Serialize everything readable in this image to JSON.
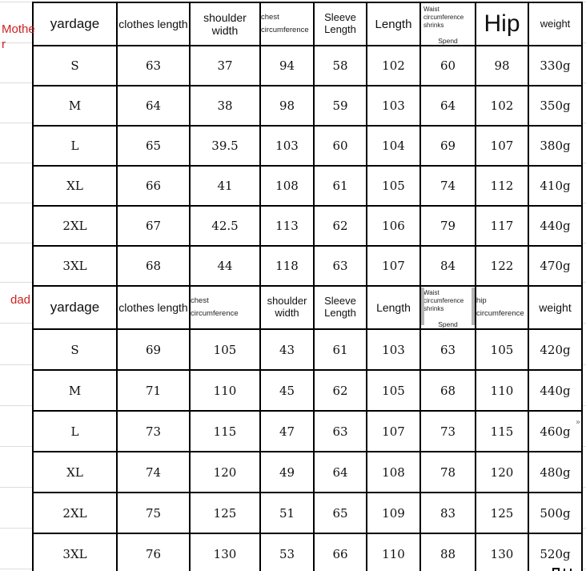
{
  "page": {
    "mother_label": "Mother",
    "dad_label": "dad",
    "accent_red": "#cc2222",
    "border_black": "#000000",
    "faint_line_gray": "#dcdcdc",
    "cursor_glyph": "»"
  },
  "tables": [
    {
      "label": "Mother",
      "headers": [
        {
          "label": "yardage"
        },
        {
          "label": "clothes length"
        },
        {
          "label": "shoulder width"
        },
        {
          "label": "chest circumference"
        },
        {
          "label": "Sleeve Length"
        },
        {
          "label": "Length"
        },
        {
          "label": "Waist circumference shrinks",
          "sub": "Spend"
        },
        {
          "label": "Hip"
        },
        {
          "label": "weight"
        }
      ],
      "rows": [
        [
          "S",
          "63",
          "37",
          "94",
          "58",
          "102",
          "60",
          "98",
          "330g"
        ],
        [
          "M",
          "64",
          "38",
          "98",
          "59",
          "103",
          "64",
          "102",
          "350g"
        ],
        [
          "L",
          "65",
          "39.5",
          "103",
          "60",
          "104",
          "69",
          "107",
          "380g"
        ],
        [
          "XL",
          "66",
          "41",
          "108",
          "61",
          "105",
          "74",
          "112",
          "410g"
        ],
        [
          "2XL",
          "67",
          "42.5",
          "113",
          "62",
          "106",
          "79",
          "117",
          "440g"
        ],
        [
          "3XL",
          "68",
          "44",
          "118",
          "63",
          "107",
          "84",
          "122",
          "470g"
        ]
      ]
    },
    {
      "label": "dad",
      "headers": [
        {
          "label": "yardage"
        },
        {
          "label": "clothes length"
        },
        {
          "label": "chest circumference"
        },
        {
          "label": "shoulder width"
        },
        {
          "label": "Sleeve Length"
        },
        {
          "label": "Length"
        },
        {
          "label": "Waist circumference shrinks",
          "sub": "Spend"
        },
        {
          "label": "hip circumference"
        },
        {
          "label": "weight"
        }
      ],
      "rows": [
        [
          "S",
          "69",
          "105",
          "43",
          "61",
          "103",
          "63",
          "105",
          "420g"
        ],
        [
          "M",
          "71",
          "110",
          "45",
          "62",
          "105",
          "68",
          "110",
          "440g"
        ],
        [
          "L",
          "73",
          "115",
          "47",
          "63",
          "107",
          "73",
          "115",
          "460g"
        ],
        [
          "XL",
          "74",
          "120",
          "49",
          "64",
          "108",
          "78",
          "120",
          "480g"
        ],
        [
          "2XL",
          "75",
          "125",
          "51",
          "65",
          "109",
          "83",
          "125",
          "500g"
        ],
        [
          "3XL",
          "76",
          "130",
          "53",
          "66",
          "110",
          "88",
          "130",
          "520g"
        ]
      ]
    }
  ]
}
